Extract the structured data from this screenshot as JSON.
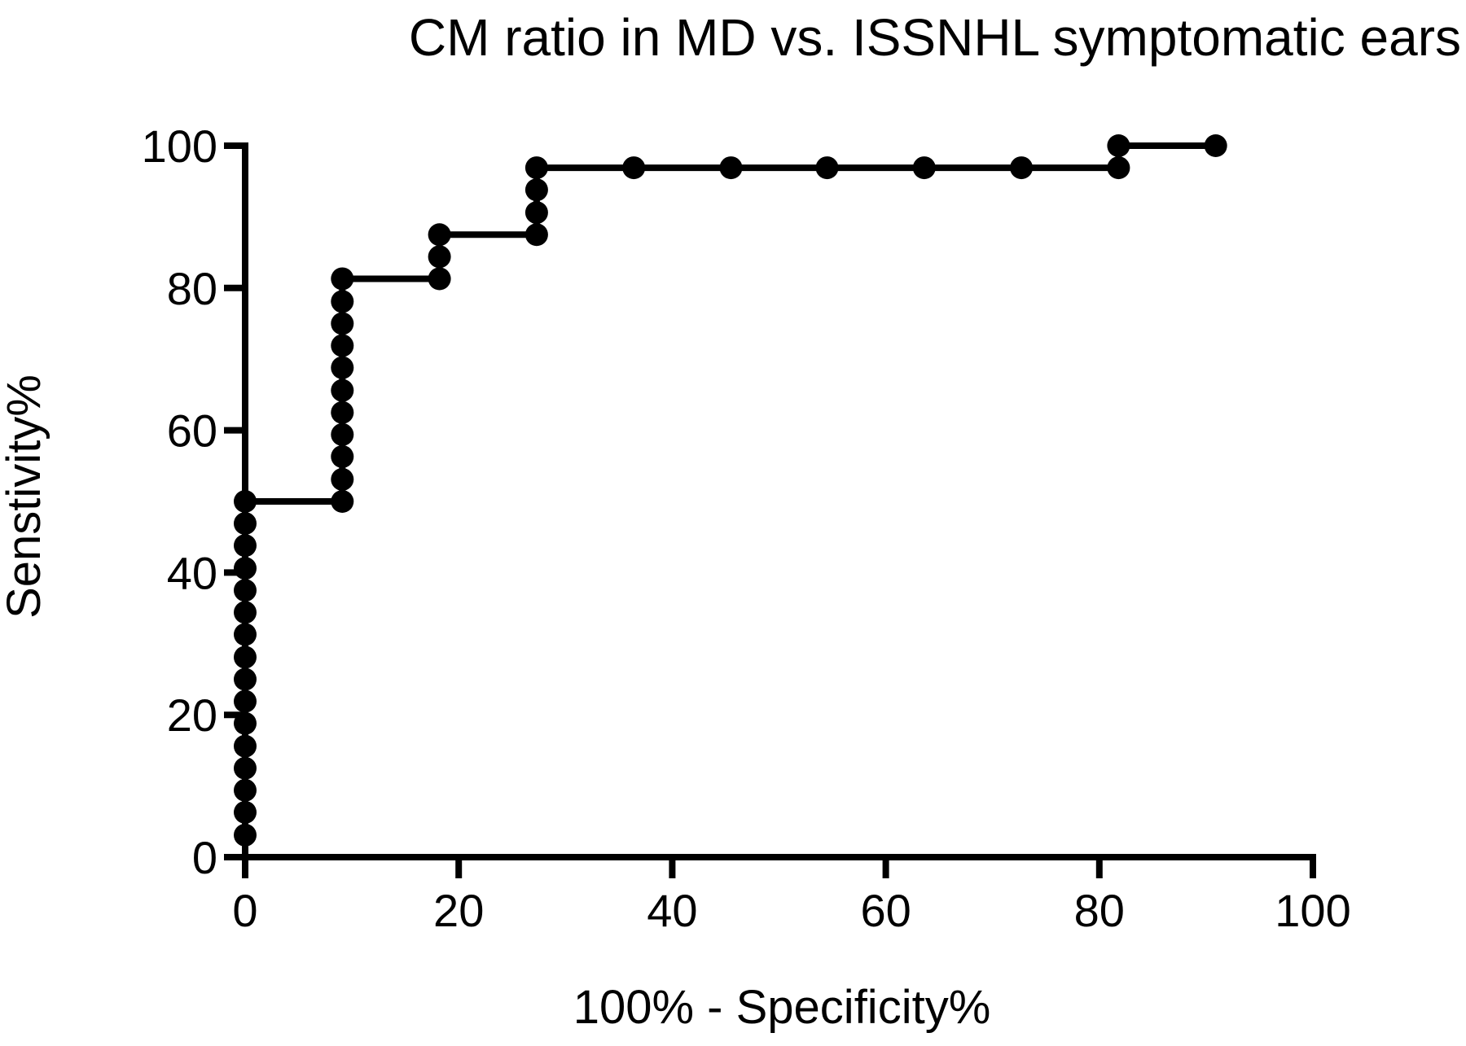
{
  "chart_data": {
    "type": "line",
    "title": "CM ratio in MD vs. ISSNHL symptomatic ears",
    "xlabel": "100% - Specificity%",
    "ylabel": "Senstivity%",
    "xlim": [
      0,
      100
    ],
    "ylim": [
      0,
      100
    ],
    "x_ticks": [
      "0",
      "20",
      "40",
      "60",
      "80",
      "100"
    ],
    "y_ticks": [
      "0",
      "20",
      "40",
      "60",
      "80",
      "100"
    ],
    "grid": false,
    "line_style": "step",
    "marker": "filled-circle",
    "color": "#000000",
    "series": [
      {
        "points": [
          [
            0,
            3.1
          ],
          [
            0,
            6.3
          ],
          [
            0,
            9.4
          ],
          [
            0,
            12.5
          ],
          [
            0,
            15.6
          ],
          [
            0,
            18.8
          ],
          [
            0,
            21.9
          ],
          [
            0,
            25.0
          ],
          [
            0,
            28.1
          ],
          [
            0,
            31.3
          ],
          [
            0,
            34.4
          ],
          [
            0,
            37.5
          ],
          [
            0,
            40.6
          ],
          [
            0,
            43.8
          ],
          [
            0,
            46.9
          ],
          [
            0,
            50.0
          ],
          [
            9.1,
            50.0
          ],
          [
            9.1,
            53.1
          ],
          [
            9.1,
            56.3
          ],
          [
            9.1,
            59.4
          ],
          [
            9.1,
            62.5
          ],
          [
            9.1,
            65.6
          ],
          [
            9.1,
            68.8
          ],
          [
            9.1,
            71.9
          ],
          [
            9.1,
            75.0
          ],
          [
            9.1,
            78.1
          ],
          [
            9.1,
            81.3
          ],
          [
            18.2,
            81.3
          ],
          [
            18.2,
            84.4
          ],
          [
            18.2,
            87.5
          ],
          [
            27.3,
            87.5
          ],
          [
            27.3,
            90.6
          ],
          [
            27.3,
            93.8
          ],
          [
            27.3,
            96.9
          ],
          [
            36.4,
            96.9
          ],
          [
            45.5,
            96.9
          ],
          [
            54.5,
            96.9
          ],
          [
            63.6,
            96.9
          ],
          [
            72.7,
            96.9
          ],
          [
            81.8,
            96.9
          ],
          [
            81.8,
            100.0
          ],
          [
            90.9,
            100.0
          ]
        ]
      }
    ]
  }
}
